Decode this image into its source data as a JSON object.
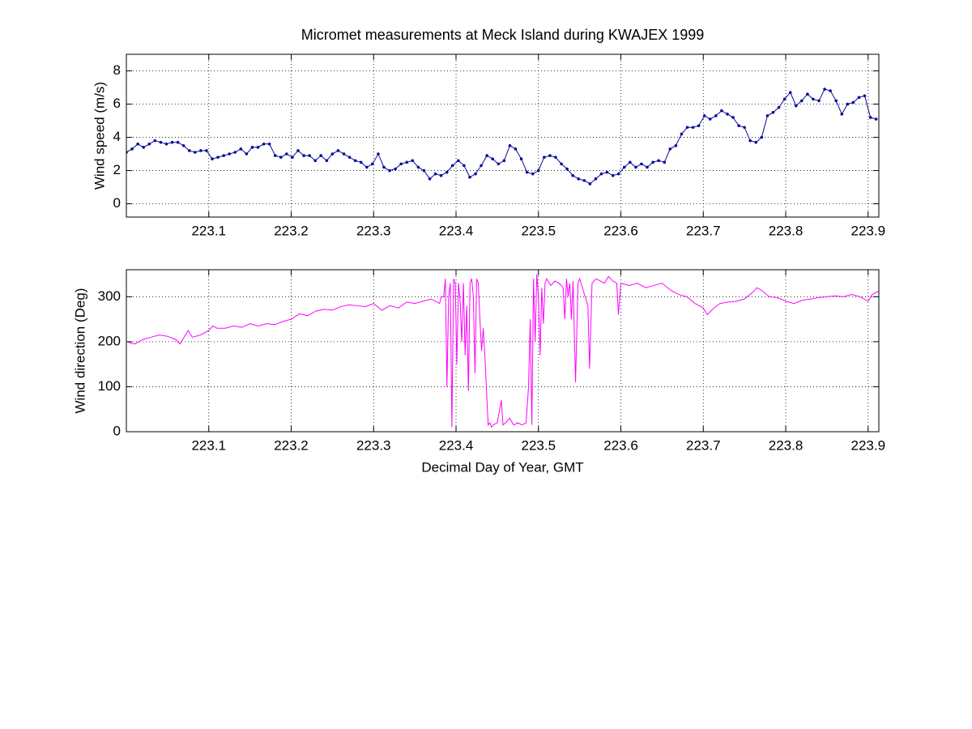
{
  "chart_data": [
    {
      "type": "line",
      "title": "Micromet measurements at Meck Island during KWAJEX 1999",
      "ylabel": "Wind speed (m/s)",
      "xlim": [
        223.0,
        223.913
      ],
      "xticks": [
        223.1,
        223.2,
        223.3,
        223.4,
        223.5,
        223.6,
        223.7,
        223.8,
        223.9
      ],
      "ylim": [
        -0.8,
        9
      ],
      "yticks": [
        0,
        2,
        4,
        6,
        8
      ],
      "grid": true,
      "markers": true,
      "x": [
        223.0,
        223.0069,
        223.0139,
        223.0208,
        223.0278,
        223.0347,
        223.0417,
        223.0486,
        223.0556,
        223.0625,
        223.0694,
        223.0764,
        223.0833,
        223.0903,
        223.0972,
        223.1042,
        223.1111,
        223.1181,
        223.125,
        223.1319,
        223.1389,
        223.1458,
        223.1528,
        223.1597,
        223.1667,
        223.1736,
        223.1806,
        223.1875,
        223.1944,
        223.2014,
        223.2083,
        223.2153,
        223.2222,
        223.2292,
        223.2361,
        223.2431,
        223.25,
        223.2569,
        223.2639,
        223.2708,
        223.2778,
        223.2847,
        223.2917,
        223.2986,
        223.3056,
        223.3125,
        223.3194,
        223.3264,
        223.3333,
        223.3403,
        223.3472,
        223.3542,
        223.3611,
        223.3681,
        223.375,
        223.3819,
        223.3889,
        223.3958,
        223.4028,
        223.4097,
        223.4167,
        223.4236,
        223.4306,
        223.4375,
        223.4444,
        223.4514,
        223.4583,
        223.4653,
        223.4722,
        223.4792,
        223.4861,
        223.4931,
        223.5,
        223.5069,
        223.5139,
        223.5208,
        223.5278,
        223.5347,
        223.5417,
        223.5486,
        223.5556,
        223.5625,
        223.5694,
        223.5764,
        223.5833,
        223.5903,
        223.5972,
        223.6042,
        223.6111,
        223.6181,
        223.625,
        223.6319,
        223.6389,
        223.6458,
        223.6528,
        223.6597,
        223.6667,
        223.6736,
        223.6806,
        223.6875,
        223.6944,
        223.7014,
        223.7083,
        223.7153,
        223.7222,
        223.7292,
        223.7361,
        223.7431,
        223.75,
        223.7569,
        223.7639,
        223.7708,
        223.7778,
        223.7847,
        223.7917,
        223.7986,
        223.8056,
        223.8125,
        223.8194,
        223.8264,
        223.8333,
        223.8403,
        223.8472,
        223.8542,
        223.8611,
        223.8681,
        223.875,
        223.8819,
        223.8889,
        223.8958,
        223.9028,
        223.9097
      ],
      "series": [
        {
          "color": "#0a0a9a",
          "values": [
            3.1,
            3.3,
            3.6,
            3.4,
            3.6,
            3.8,
            3.7,
            3.6,
            3.7,
            3.7,
            3.5,
            3.2,
            3.1,
            3.2,
            3.2,
            2.7,
            2.8,
            2.9,
            3.0,
            3.1,
            3.3,
            3.0,
            3.4,
            3.4,
            3.6,
            3.6,
            2.9,
            2.8,
            3.0,
            2.8,
            3.2,
            2.9,
            2.9,
            2.6,
            2.9,
            2.6,
            3.0,
            3.2,
            3.0,
            2.8,
            2.6,
            2.5,
            2.2,
            2.4,
            3.0,
            2.2,
            2.0,
            2.1,
            2.4,
            2.5,
            2.6,
            2.2,
            2.0,
            1.5,
            1.8,
            1.7,
            1.9,
            2.3,
            2.6,
            2.3,
            1.6,
            1.8,
            2.3,
            2.9,
            2.7,
            2.4,
            2.6,
            3.5,
            3.3,
            2.7,
            1.9,
            1.8,
            2.0,
            2.8,
            2.9,
            2.8,
            2.4,
            2.1,
            1.7,
            1.5,
            1.4,
            1.2,
            1.5,
            1.8,
            1.9,
            1.7,
            1.8,
            2.2,
            2.5,
            2.2,
            2.4,
            2.2,
            2.5,
            2.6,
            2.5,
            3.3,
            3.5,
            4.2,
            4.6,
            4.6,
            4.7,
            5.3,
            5.1,
            5.3,
            5.6,
            5.4,
            5.2,
            4.7,
            4.6,
            3.8,
            3.7,
            4.0,
            5.3,
            5.5,
            5.8,
            6.3,
            6.7,
            5.9,
            6.2,
            6.6,
            6.3,
            6.2,
            6.9,
            6.8,
            6.2,
            5.4,
            6.0,
            6.1,
            6.4,
            6.5,
            5.2,
            5.1
          ]
        }
      ]
    },
    {
      "type": "line",
      "ylabel": "Wind direction (Deg)",
      "xlabel": "Decimal Day of Year, GMT",
      "xlim": [
        223.0,
        223.913
      ],
      "xticks": [
        223.1,
        223.2,
        223.3,
        223.4,
        223.5,
        223.6,
        223.7,
        223.8,
        223.9
      ],
      "ylim": [
        0,
        360
      ],
      "yticks": [
        0,
        100,
        200,
        300
      ],
      "grid": true,
      "markers": false,
      "x": [
        223.0,
        223.01,
        223.02,
        223.03,
        223.04,
        223.05,
        223.06,
        223.065,
        223.07,
        223.075,
        223.08,
        223.09,
        223.1,
        223.105,
        223.11,
        223.12,
        223.13,
        223.14,
        223.15,
        223.16,
        223.17,
        223.18,
        223.19,
        223.2,
        223.21,
        223.22,
        223.23,
        223.24,
        223.25,
        223.26,
        223.27,
        223.28,
        223.29,
        223.3,
        223.31,
        223.32,
        223.33,
        223.34,
        223.35,
        223.36,
        223.37,
        223.38,
        223.382,
        223.385,
        223.387,
        223.389,
        223.391,
        223.393,
        223.395,
        223.397,
        223.399,
        223.401,
        223.403,
        223.405,
        223.407,
        223.409,
        223.411,
        223.413,
        223.415,
        223.417,
        223.419,
        223.421,
        223.423,
        223.425,
        223.427,
        223.429,
        223.431,
        223.433,
        223.435,
        223.437,
        223.439,
        223.441,
        223.443,
        223.445,
        223.45,
        223.455,
        223.457,
        223.46,
        223.465,
        223.47,
        223.475,
        223.48,
        223.485,
        223.488,
        223.49,
        223.492,
        223.494,
        223.496,
        223.498,
        223.5,
        223.502,
        223.504,
        223.506,
        223.508,
        223.51,
        223.515,
        223.52,
        223.525,
        223.53,
        223.532,
        223.534,
        223.536,
        223.538,
        223.54,
        223.542,
        223.545,
        223.548,
        223.55,
        223.555,
        223.56,
        223.562,
        223.565,
        223.57,
        223.575,
        223.58,
        223.585,
        223.59,
        223.595,
        223.597,
        223.6,
        223.61,
        223.62,
        223.63,
        223.64,
        223.65,
        223.66,
        223.67,
        223.68,
        223.69,
        223.7,
        223.705,
        223.71,
        223.72,
        223.73,
        223.74,
        223.75,
        223.76,
        223.765,
        223.77,
        223.78,
        223.79,
        223.8,
        223.81,
        223.82,
        223.83,
        223.84,
        223.85,
        223.86,
        223.87,
        223.88,
        223.89,
        223.9,
        223.905,
        223.91,
        223.913
      ],
      "series": [
        {
          "color": "#ff00ff",
          "values": [
            200,
            195,
            205,
            210,
            215,
            212,
            205,
            195,
            210,
            225,
            210,
            215,
            225,
            235,
            230,
            230,
            235,
            232,
            240,
            235,
            240,
            238,
            245,
            250,
            262,
            258,
            268,
            272,
            270,
            278,
            282,
            280,
            278,
            285,
            270,
            280,
            275,
            288,
            285,
            290,
            295,
            285,
            300,
            300,
            340,
            100,
            300,
            330,
            10,
            340,
            330,
            150,
            330,
            290,
            200,
            330,
            170,
            280,
            90,
            330,
            340,
            300,
            130,
            340,
            330,
            250,
            180,
            230,
            170,
            90,
            15,
            20,
            10,
            15,
            20,
            70,
            15,
            20,
            30,
            15,
            20,
            15,
            20,
            100,
            250,
            15,
            340,
            200,
            350,
            300,
            170,
            320,
            240,
            330,
            340,
            325,
            335,
            330,
            320,
            250,
            340,
            300,
            330,
            250,
            335,
            110,
            330,
            340,
            310,
            280,
            140,
            330,
            340,
            335,
            330,
            345,
            335,
            330,
            260,
            330,
            325,
            330,
            320,
            325,
            330,
            315,
            305,
            300,
            285,
            275,
            260,
            270,
            285,
            288,
            290,
            295,
            310,
            320,
            315,
            300,
            298,
            290,
            285,
            292,
            295,
            298,
            300,
            302,
            300,
            305,
            300,
            290,
            305,
            310,
            312
          ]
        }
      ]
    }
  ]
}
